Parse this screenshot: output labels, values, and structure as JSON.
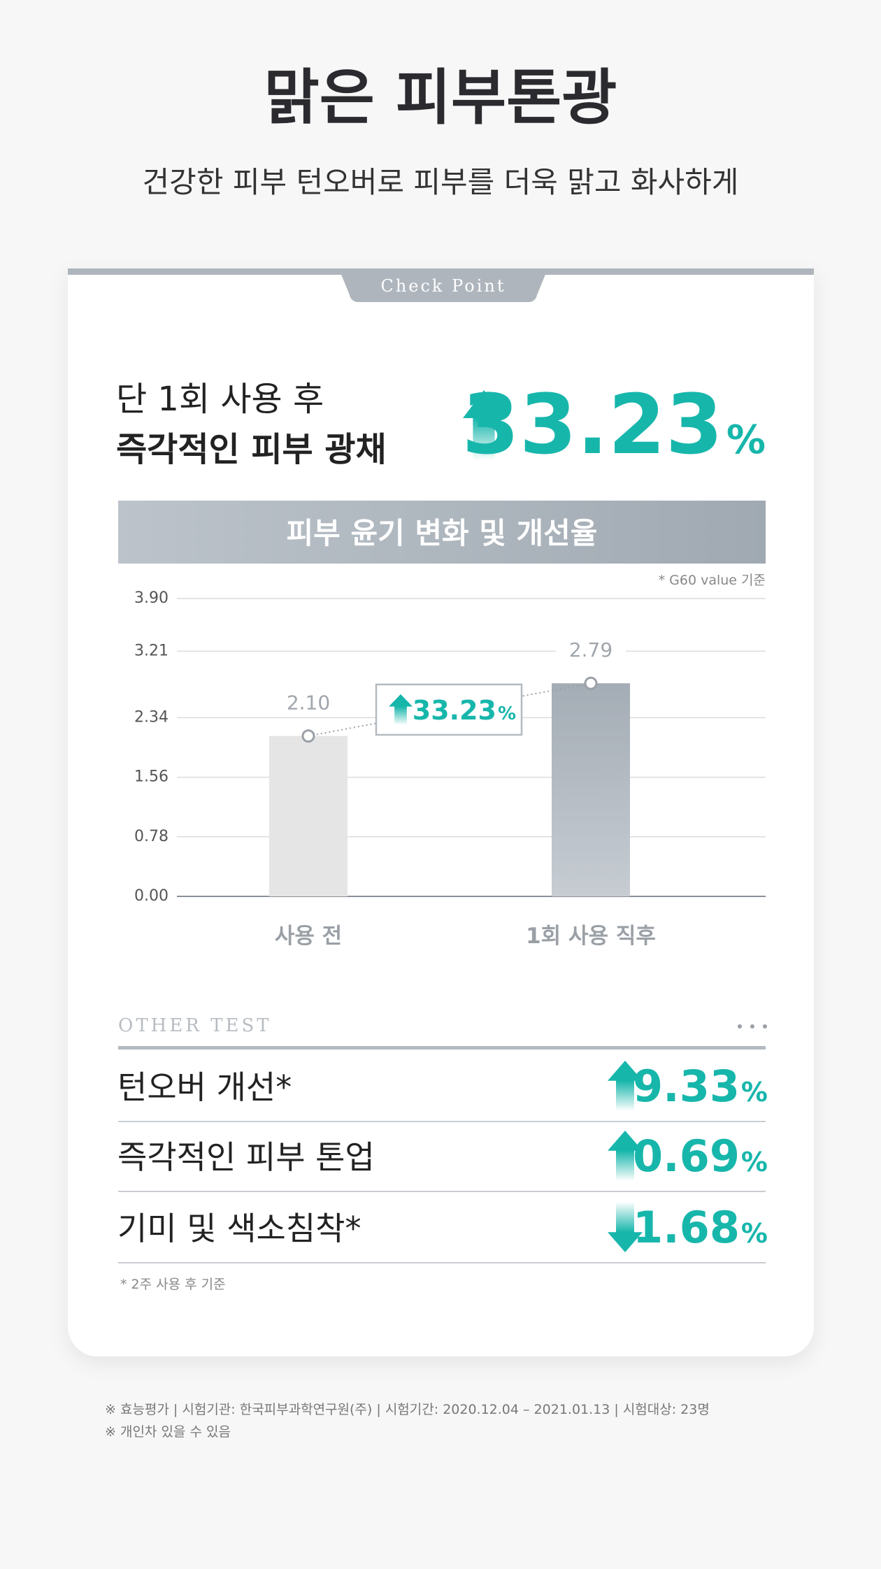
{
  "header": {
    "title": "맑은 피부톤광",
    "subtitle": "건강한 피부 턴오버로 피부를 더욱 맑고 화사하게"
  },
  "card": {
    "tab": "Check Point",
    "claim": [
      "단 1회 사용 후",
      "즉각적인 피부 광채"
    ],
    "headline": {
      "value": 33.23,
      "unit": "%",
      "direction": "up"
    }
  },
  "chart_data": {
    "type": "bar",
    "title": "피부 윤기 변화 및 개선율",
    "note": "* G60 value 기준",
    "categories": [
      "사용 전",
      "1회 사용 직후"
    ],
    "values": [
      2.1,
      2.79
    ],
    "value_labels": [
      "2.10",
      "2.79"
    ],
    "colors": [
      "#e5e5e5",
      "#a4acb5"
    ],
    "ylim": [
      0,
      3.9
    ],
    "yticks": [
      {
        "value": 0,
        "label": "0.00"
      },
      0.78,
      1.56,
      2.34,
      3.21,
      {
        "value": 3.9,
        "label": "3.90"
      }
    ],
    "grid": true,
    "annotation": {
      "value": 33.23,
      "unit": "%",
      "direction": "up"
    }
  },
  "other_test": {
    "title": "OTHER TEST",
    "rows": [
      {
        "label": "턴오버 개선*",
        "value": 9.33,
        "unit": "%",
        "direction": "up"
      },
      {
        "label": "즉각적인 피부 톤업",
        "value": 0.69,
        "unit": "%",
        "direction": "up"
      },
      {
        "label": "기미 및 색소침착*",
        "value": 1.68,
        "unit": "%",
        "direction": "down"
      }
    ],
    "note": "* 2주 사용 후 기준"
  },
  "footnotes": [
    "※ 효능평가 | 시험기관: 한국피부과학연구원(주) | 시험기간: 2020.12.04 – 2021.01.13 | 시험대상: 23명",
    "※ 개인차 있을 수 있음"
  ]
}
